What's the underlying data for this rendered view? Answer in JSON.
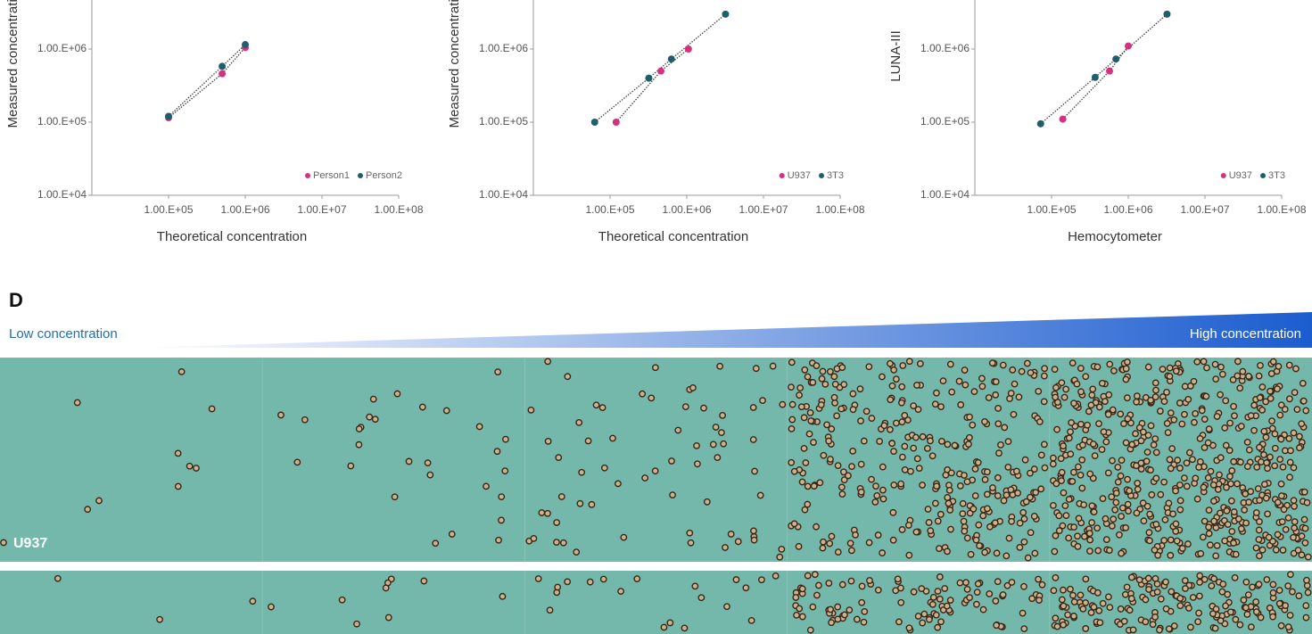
{
  "chart_data": [
    {
      "type": "scatter",
      "xlabel": "Theoretical concentration",
      "ylabel": "Measured concentration",
      "xscale": "log",
      "yscale": "log",
      "xlim": [
        10000,
        100000000
      ],
      "ylim": [
        10000,
        5000000
      ],
      "xticks": [
        {
          "value": 100000,
          "label": "1.00.E+05"
        },
        {
          "value": 1000000,
          "label": "1.00.E+06"
        },
        {
          "value": 10000000,
          "label": "1.00.E+07"
        },
        {
          "value": 100000000,
          "label": "1.00.E+08"
        }
      ],
      "yticks": [
        {
          "value": 10000,
          "label": "1.00.E+04"
        },
        {
          "value": 100000,
          "label": "1.00.E+05"
        },
        {
          "value": 1000000,
          "label": "1.00.E+06"
        }
      ],
      "legend": "lower right",
      "series": [
        {
          "name": "Person1",
          "color": "#d6317e",
          "x": [
            100000,
            500000,
            1000000
          ],
          "values": [
            115000,
            460000,
            1050000
          ]
        },
        {
          "name": "Person2",
          "color": "#1f5e6e",
          "x": [
            100000,
            500000,
            1000000
          ],
          "values": [
            120000,
            580000,
            1150000
          ]
        }
      ]
    },
    {
      "type": "scatter",
      "xlabel": "Theoretical concentration",
      "ylabel": "Measured concentration",
      "xscale": "log",
      "yscale": "log",
      "xlim": [
        10000,
        100000000
      ],
      "ylim": [
        10000,
        5000000
      ],
      "xticks": [
        {
          "value": 100000,
          "label": "1.00.E+05"
        },
        {
          "value": 1000000,
          "label": "1.00.E+06"
        },
        {
          "value": 10000000,
          "label": "1.00.E+07"
        },
        {
          "value": 100000000,
          "label": "1.00.E+08"
        }
      ],
      "yticks": [
        {
          "value": 10000,
          "label": "1.00.E+04"
        },
        {
          "value": 100000,
          "label": "1.00.E+05"
        },
        {
          "value": 1000000,
          "label": "1.00.E+06"
        }
      ],
      "legend": "lower right",
      "series": [
        {
          "name": "U937",
          "color": "#d6317e",
          "x": [
            120000,
            460000,
            1050000
          ],
          "values": [
            100000,
            500000,
            1000000
          ]
        },
        {
          "name": "3T3",
          "color": "#1f5e6e",
          "x": [
            63000,
            320000,
            630000,
            3200000
          ],
          "values": [
            100000,
            400000,
            730000,
            3000000
          ]
        }
      ]
    },
    {
      "type": "scatter",
      "xlabel": "Hemocytometer",
      "ylabel": "LUNA-III",
      "xscale": "log",
      "yscale": "log",
      "xlim": [
        10000,
        100000000
      ],
      "ylim": [
        10000,
        5000000
      ],
      "xticks": [
        {
          "value": 100000,
          "label": "1.00.E+05"
        },
        {
          "value": 1000000,
          "label": "1.00.E+06"
        },
        {
          "value": 10000000,
          "label": "1.00.E+07"
        },
        {
          "value": 100000000,
          "label": "1.00.E+08"
        }
      ],
      "yticks": [
        {
          "value": 10000,
          "label": "1.00.E+04"
        },
        {
          "value": 100000,
          "label": "1.00.E+05"
        },
        {
          "value": 1000000,
          "label": "1.00.E+06"
        }
      ],
      "legend": "lower right",
      "series": [
        {
          "name": "U937",
          "color": "#d6317e",
          "x": [
            140000,
            570000,
            1000000
          ],
          "values": [
            110000,
            500000,
            1100000
          ]
        },
        {
          "name": "3T3",
          "color": "#1f5e6e",
          "x": [
            72000,
            370000,
            690000,
            3200000
          ],
          "values": [
            95000,
            410000,
            730000,
            3000000
          ]
        }
      ]
    }
  ],
  "panel_d": {
    "label": "D",
    "low": "Low concentration",
    "high": "High concentration",
    "rows": [
      "U937"
    ]
  }
}
